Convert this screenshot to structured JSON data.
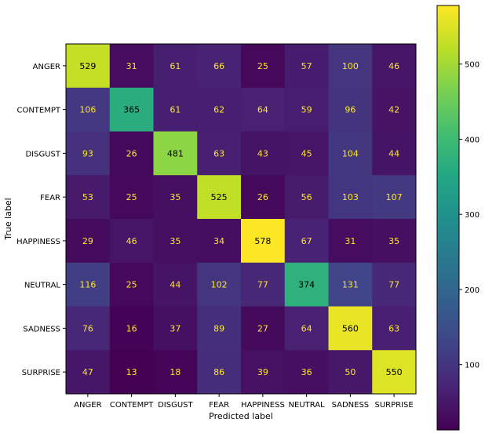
{
  "chart_data": {
    "type": "heatmap",
    "xlabel": "Predicted label",
    "ylabel": "True label",
    "x_categories": [
      "ANGER",
      "CONTEMPT",
      "DISGUST",
      "FEAR",
      "HAPPINESS",
      "NEUTRAL",
      "SADNESS",
      "SURPRISE"
    ],
    "y_categories": [
      "ANGER",
      "CONTEMPT",
      "DISGUST",
      "FEAR",
      "HAPPINESS",
      "NEUTRAL",
      "SADNESS",
      "SURPRISE"
    ],
    "matrix": [
      [
        529,
        31,
        61,
        66,
        25,
        57,
        100,
        46
      ],
      [
        106,
        365,
        61,
        62,
        64,
        59,
        96,
        42
      ],
      [
        93,
        26,
        481,
        63,
        43,
        45,
        104,
        44
      ],
      [
        53,
        25,
        35,
        525,
        26,
        56,
        103,
        107
      ],
      [
        29,
        46,
        35,
        34,
        578,
        67,
        31,
        35
      ],
      [
        116,
        25,
        44,
        102,
        77,
        374,
        131,
        77
      ],
      [
        76,
        16,
        37,
        89,
        27,
        64,
        560,
        63
      ],
      [
        47,
        13,
        18,
        86,
        39,
        36,
        50,
        550
      ]
    ],
    "colormap": "viridis",
    "colorbar": {
      "range": [
        13,
        578
      ],
      "ticks": [
        100,
        200,
        300,
        400,
        500
      ],
      "tick_labels": [
        "100",
        "200",
        "300",
        "400",
        "500"
      ]
    },
    "grid": false
  }
}
